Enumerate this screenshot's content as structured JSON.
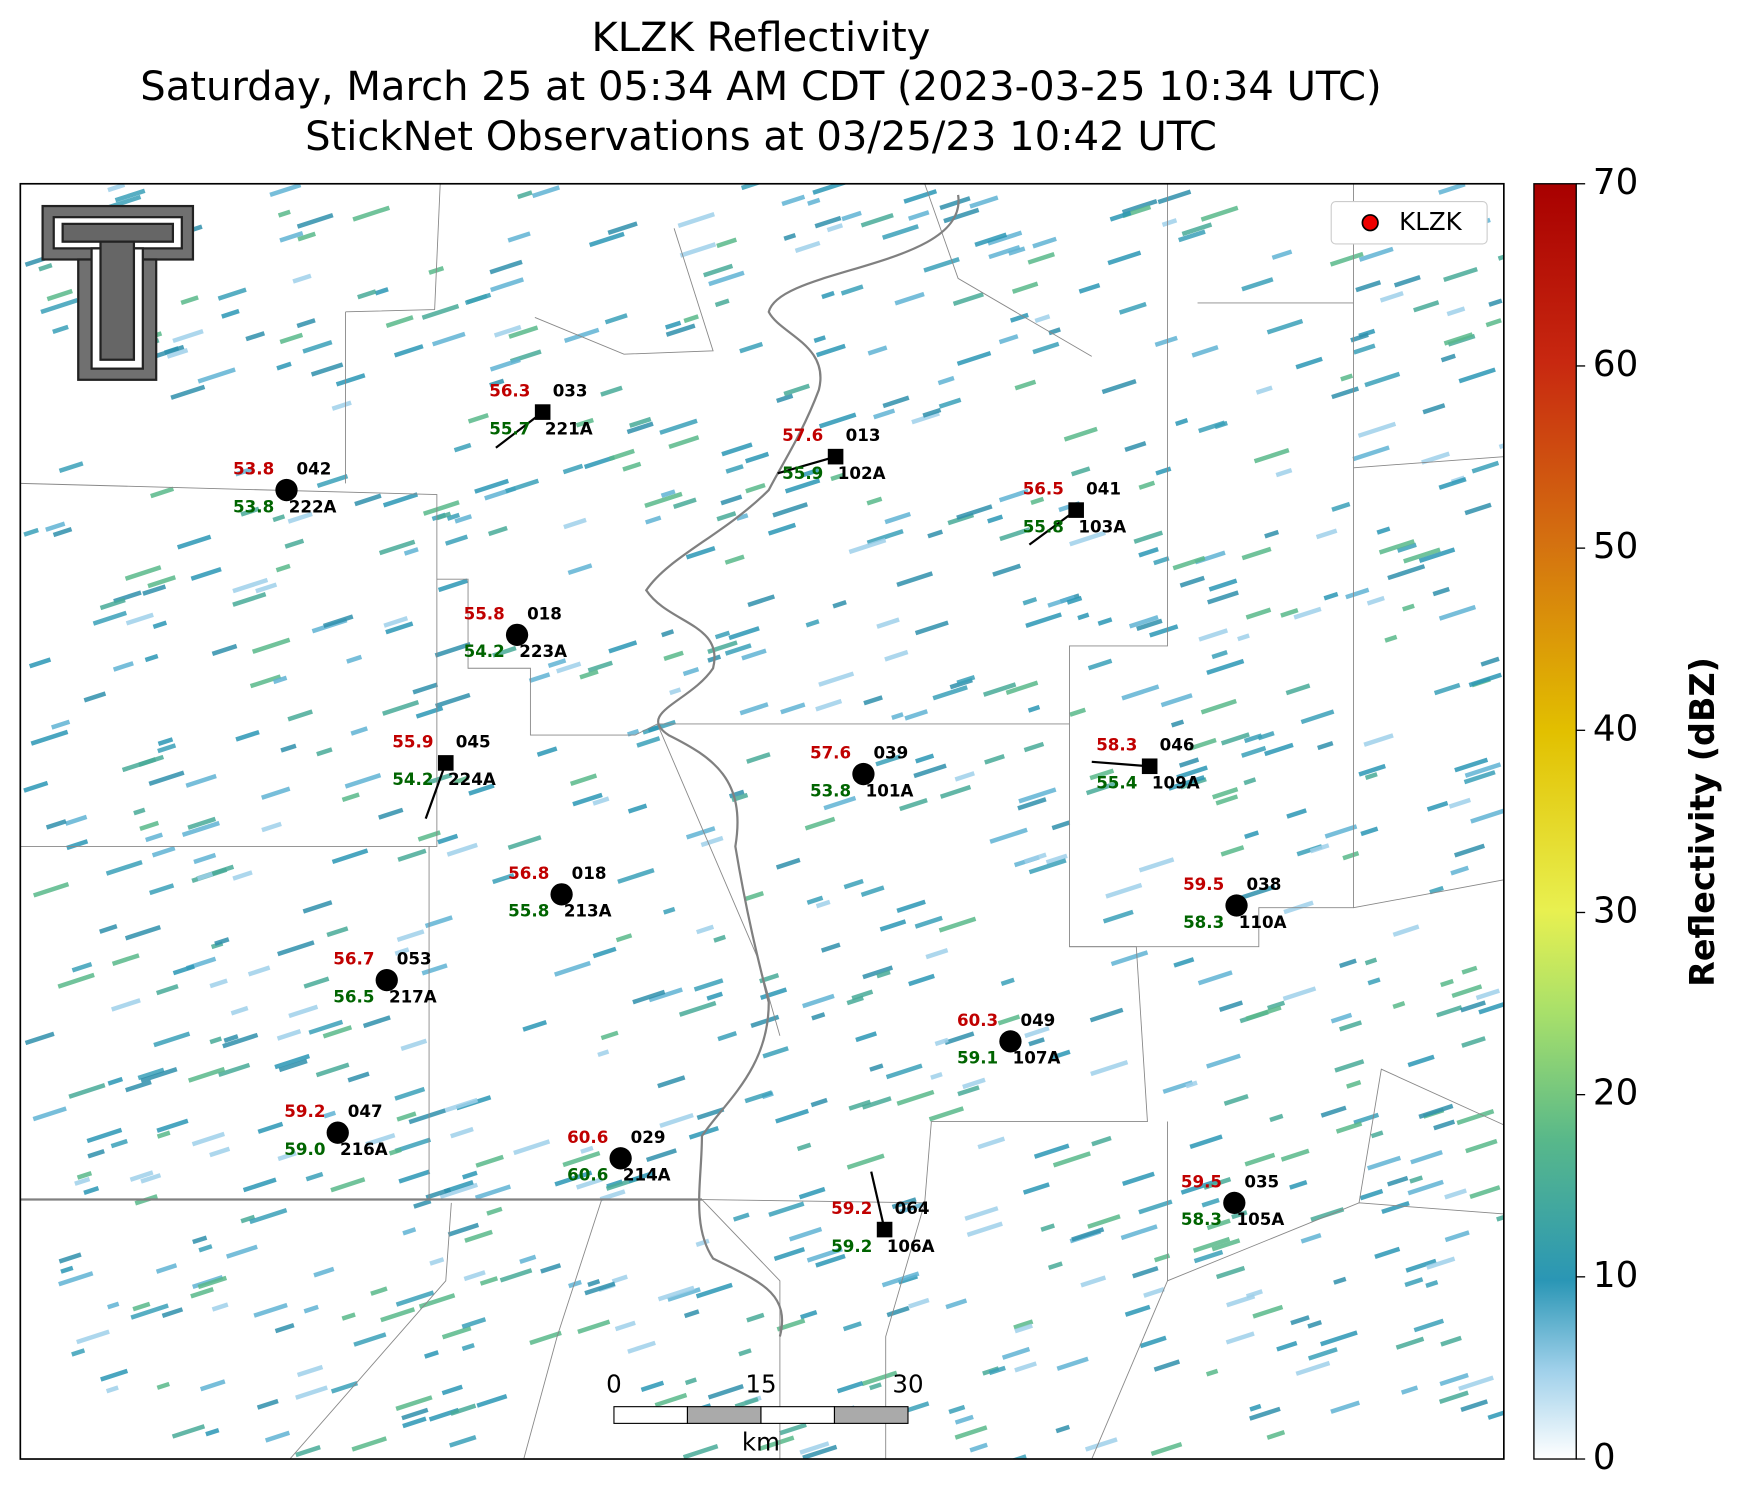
{
  "title": [
    "KLZK Reflectivity",
    "Saturday, March 25 at 05:34 AM CDT (2023-03-25 10:34 UTC)",
    "StickNet Observations at 03/25/23 10:42 UTC"
  ],
  "legend": "KLZK",
  "colorbar": {
    "label": "Reflectivity (dBZ)",
    "lim": [
      0,
      70
    ],
    "ticks": [
      0,
      10,
      20,
      30,
      40,
      50,
      60,
      70
    ]
  },
  "scale_bar": {
    "ticks": [
      "0",
      "15",
      "30"
    ],
    "unit": "km"
  },
  "stations": [
    {
      "temp": "56.3",
      "dew": "55.7",
      "code": "033",
      "id": "221A"
    },
    {
      "temp": "57.6",
      "dew": "55.9",
      "code": "013",
      "id": "102A"
    },
    {
      "temp": "53.8",
      "dew": "53.8",
      "code": "042",
      "id": "222A"
    },
    {
      "temp": "56.5",
      "dew": "55.8",
      "code": "041",
      "id": "103A"
    },
    {
      "temp": "55.8",
      "dew": "54.2",
      "code": "018",
      "id": "223A"
    },
    {
      "temp": "55.9",
      "dew": "54.2",
      "code": "045",
      "id": "224A"
    },
    {
      "temp": "57.6",
      "dew": "53.8",
      "code": "039",
      "id": "101A"
    },
    {
      "temp": "58.3",
      "dew": "55.4",
      "code": "046",
      "id": "109A"
    },
    {
      "temp": "56.8",
      "dew": "55.8",
      "code": "018",
      "id": "213A"
    },
    {
      "temp": "59.5",
      "dew": "58.3",
      "code": "038",
      "id": "110A"
    },
    {
      "temp": "56.7",
      "dew": "56.5",
      "code": "053",
      "id": "217A"
    },
    {
      "temp": "60.3",
      "dew": "59.1",
      "code": "049",
      "id": "107A"
    },
    {
      "temp": "59.2",
      "dew": "59.0",
      "code": "047",
      "id": "216A"
    },
    {
      "temp": "60.6",
      "dew": "60.6",
      "code": "029",
      "id": "214A"
    },
    {
      "temp": "59.5",
      "dew": "58.3",
      "code": "035",
      "id": "105A"
    },
    {
      "temp": "59.2",
      "dew": "59.2",
      "code": "064",
      "id": "106A"
    }
  ]
}
